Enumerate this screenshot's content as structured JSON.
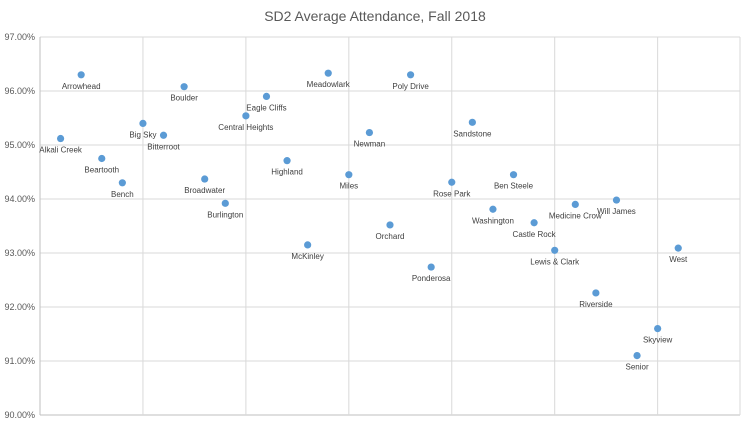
{
  "chart_data": {
    "type": "scatter",
    "title": "SD2 Average Attendance, Fall 2018",
    "xlabel": "",
    "ylabel": "",
    "ylim": [
      90.0,
      97.0
    ],
    "xlim": [
      0,
      34
    ],
    "y_tick_labels": [
      "90.00%",
      "91.00%",
      "92.00%",
      "93.00%",
      "94.00%",
      "95.00%",
      "96.00%",
      "97.00%"
    ],
    "grid": {
      "horizontal": true,
      "vertical": true
    },
    "legend": "none",
    "marker_color": "#5b9bd5",
    "points": [
      {
        "label": "Alkali Creek",
        "x": 1,
        "y": 95.12
      },
      {
        "label": "Arrowhead",
        "x": 2,
        "y": 96.3
      },
      {
        "label": "Beartooth",
        "x": 3,
        "y": 94.75
      },
      {
        "label": "Bench",
        "x": 4,
        "y": 94.3
      },
      {
        "label": "Big Sky",
        "x": 5,
        "y": 95.4
      },
      {
        "label": "Bitterroot",
        "x": 6,
        "y": 95.18
      },
      {
        "label": "Boulder",
        "x": 7,
        "y": 96.08
      },
      {
        "label": "Broadwater",
        "x": 8,
        "y": 94.37
      },
      {
        "label": "Burlington",
        "x": 9,
        "y": 93.92
      },
      {
        "label": "Central Heights",
        "x": 10,
        "y": 95.54
      },
      {
        "label": "Eagle Cliffs",
        "x": 11,
        "y": 95.9
      },
      {
        "label": "Highland",
        "x": 12,
        "y": 94.71
      },
      {
        "label": "McKinley",
        "x": 13,
        "y": 93.15
      },
      {
        "label": "Meadowlark",
        "x": 14,
        "y": 96.33
      },
      {
        "label": "Miles",
        "x": 15,
        "y": 94.45
      },
      {
        "label": "Newman",
        "x": 16,
        "y": 95.23
      },
      {
        "label": "Orchard",
        "x": 17,
        "y": 93.52
      },
      {
        "label": "Poly Drive",
        "x": 18,
        "y": 96.3
      },
      {
        "label": "Ponderosa",
        "x": 19,
        "y": 92.74
      },
      {
        "label": "Rose Park",
        "x": 20,
        "y": 94.31
      },
      {
        "label": "Sandstone",
        "x": 21,
        "y": 95.42
      },
      {
        "label": "Washington",
        "x": 22,
        "y": 93.81
      },
      {
        "label": "Ben Steele",
        "x": 23,
        "y": 94.45
      },
      {
        "label": "Castle Rock",
        "x": 24,
        "y": 93.56
      },
      {
        "label": "Lewis & Clark",
        "x": 25,
        "y": 93.05
      },
      {
        "label": "Medicine Crow",
        "x": 26,
        "y": 93.9
      },
      {
        "label": "Riverside",
        "x": 27,
        "y": 92.26
      },
      {
        "label": "Will James",
        "x": 28,
        "y": 93.98
      },
      {
        "label": "Senior",
        "x": 29,
        "y": 91.1
      },
      {
        "label": "Skyview",
        "x": 30,
        "y": 91.6
      },
      {
        "label": "West",
        "x": 31,
        "y": 93.09
      }
    ]
  }
}
